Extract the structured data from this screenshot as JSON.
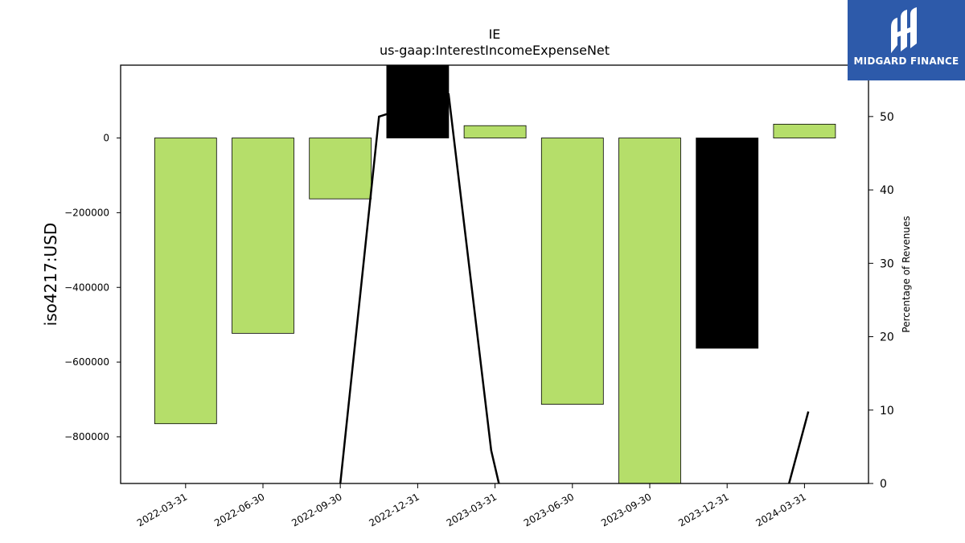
{
  "chart_data": {
    "type": "bar",
    "title": "IE",
    "subtitle": "us-gaap:InterestIncomeExpenseNet",
    "ylabel": "iso4217:USD",
    "y2label": "Percentage of Revenues",
    "categories": [
      "2022-03-31",
      "2022-06-30",
      "2022-09-30",
      "2022-12-31",
      "2023-03-31",
      "2023-06-30",
      "2023-09-30",
      "2023-12-31",
      "2024-03-31"
    ],
    "values": [
      -765000,
      -523000,
      -163000,
      200000,
      33000,
      -713000,
      -925000,
      -563000,
      37000
    ],
    "bar_colors": [
      "#b5de6a",
      "#b5de6a",
      "#b5de6a",
      "#000000",
      "#b5de6a",
      "#b5de6a",
      "#b5de6a",
      "#000000",
      "#b5de6a"
    ],
    "ylim": [
      -925000,
      195000
    ],
    "yticks": [
      0,
      -200000,
      -400000,
      -600000,
      -800000
    ],
    "ytick_labels": [
      "0",
      "−200000",
      "−400000",
      "−600000",
      "−800000"
    ],
    "y2lim": [
      0,
      57
    ],
    "y2ticks": [
      0,
      10,
      20,
      30,
      40,
      50
    ],
    "line_series": [
      {
        "points": [
          [
            2,
            0
          ],
          [
            2.5,
            50
          ],
          [
            3.4,
            53
          ],
          [
            3.95,
            4.5
          ],
          [
            4.05,
            0
          ]
        ]
      },
      {
        "points": [
          [
            7.8,
            0
          ],
          [
            8.05,
            9.8
          ]
        ]
      }
    ],
    "grid": false,
    "legend": "none"
  },
  "logo": {
    "text": "MIDGARD FINANCE",
    "icon": "midgard-logo-icon",
    "color": "#2d5aaa"
  }
}
